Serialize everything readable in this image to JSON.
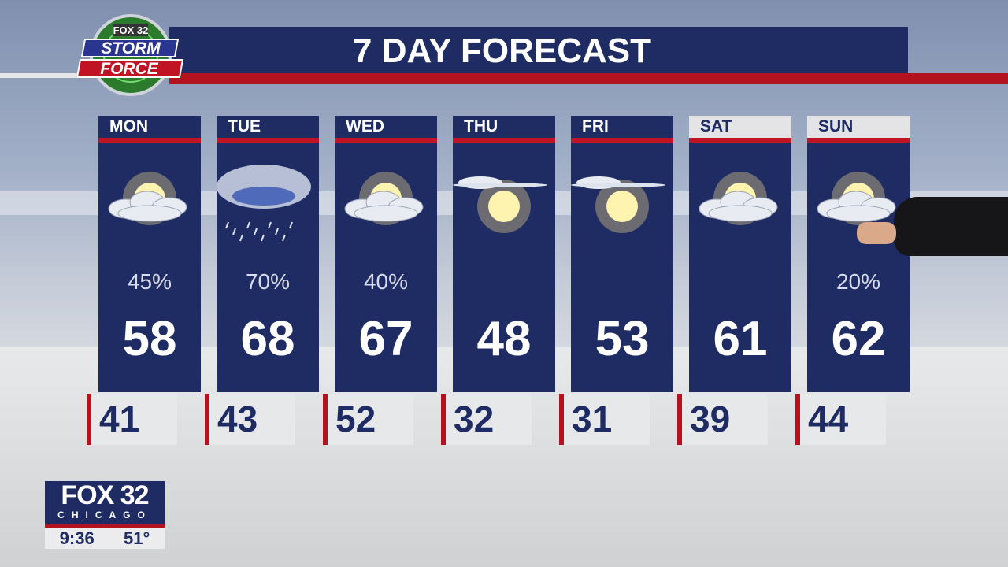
{
  "title": "7 DAY FORECAST",
  "logo": {
    "top": "FOX 32",
    "line1": "STORM",
    "line2": "FORCE"
  },
  "days": [
    {
      "day": "MON",
      "condition": "partly-cloudy-icon",
      "precip": "45%",
      "high": "58",
      "low": "41"
    },
    {
      "day": "TUE",
      "condition": "rain-icon",
      "precip": "70%",
      "high": "68",
      "low": "43"
    },
    {
      "day": "WED",
      "condition": "partly-cloudy-icon",
      "precip": "40%",
      "high": "67",
      "low": "52"
    },
    {
      "day": "THU",
      "condition": "mostly-sunny-icon",
      "precip": "",
      "high": "48",
      "low": "32"
    },
    {
      "day": "FRI",
      "condition": "mostly-sunny-icon",
      "precip": "",
      "high": "53",
      "low": "31"
    },
    {
      "day": "SAT",
      "condition": "partly-cloudy-icon",
      "precip": "",
      "high": "61",
      "low": "39"
    },
    {
      "day": "SUN",
      "condition": "partly-cloudy-icon",
      "precip": "20%",
      "high": "62",
      "low": "44"
    }
  ],
  "bug": {
    "brand": "FOX 32",
    "city": "CHICAGO",
    "time": "9:36",
    "temp": "51°"
  },
  "colors": {
    "navy": "#1f2c64",
    "red": "#b3121f"
  }
}
